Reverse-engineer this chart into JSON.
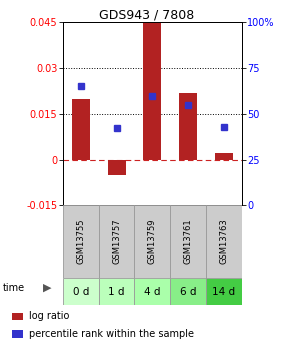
{
  "title": "GDS943 / 7808",
  "samples": [
    "GSM13755",
    "GSM13757",
    "GSM13759",
    "GSM13761",
    "GSM13763"
  ],
  "time_labels": [
    "0 d",
    "1 d",
    "4 d",
    "6 d",
    "14 d"
  ],
  "log_ratio": [
    0.02,
    -0.005,
    0.045,
    0.022,
    0.002
  ],
  "percentile_rank": [
    65,
    42,
    60,
    55,
    43
  ],
  "left_ylim": [
    -0.015,
    0.045
  ],
  "right_ylim": [
    0,
    100
  ],
  "left_yticks": [
    -0.015,
    0,
    0.015,
    0.03,
    0.045
  ],
  "right_yticks": [
    0,
    25,
    50,
    75,
    100
  ],
  "hline_dotted": [
    0.015,
    0.03
  ],
  "bar_color": "#b22222",
  "square_color": "#3333cc",
  "bar_width": 0.5,
  "gsm_bg": "#cccccc",
  "time_bg_colors": [
    "#ccffcc",
    "#bbffbb",
    "#aaffaa",
    "#88ee88",
    "#44cc44"
  ],
  "legend_logratio": "log ratio",
  "legend_pct": "percentile rank within the sample",
  "title_fontsize": 9,
  "tick_fontsize": 7,
  "gsm_fontsize": 6,
  "time_fontsize": 7.5,
  "legend_fontsize": 7
}
